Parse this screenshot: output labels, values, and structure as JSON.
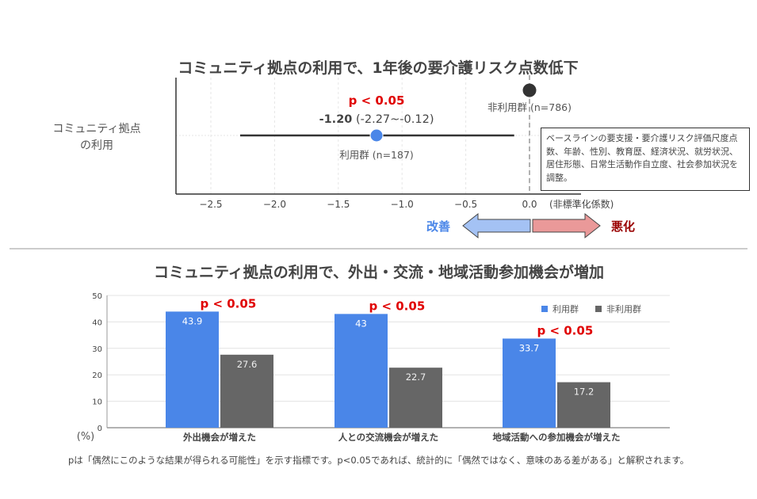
{
  "chart_data": [
    {
      "type": "scatter",
      "subtype": "forest-plot",
      "title": "コミュニティ拠点の利用で、1年後の要介護リスク点数低下",
      "ylabel_lines": [
        "コミュニティ拠点",
        "の利用"
      ],
      "xlabel": "(非標準化係数)",
      "xlim": [
        -2.8,
        0.35
      ],
      "xticks": [
        -2.5,
        -2.0,
        -1.5,
        -1.0,
        -0.5,
        0.0
      ],
      "xtick_labels": [
        "−2.5",
        "−2.0",
        "−1.5",
        "−1.0",
        "−0.5",
        "0.0"
      ],
      "grid": true,
      "reference_line": 0.0,
      "points": [
        {
          "name": "利用群 (n=187)",
          "estimate": -1.2,
          "ci_low": -2.27,
          "ci_high": -0.12,
          "color": "#4a86e8",
          "label": "-1.20 (-2.27~-0.12)",
          "label_bold": "-1.20",
          "label_rest": " (-2.27~-0.12)",
          "p_label": "p < 0.05"
        },
        {
          "name": "非利用群 (n=786)",
          "estimate": 0.0,
          "color": "#333333",
          "reference": true
        }
      ],
      "annotation": "ベースラインの要支援・要介護リスク評価尺度点数、年齢、性別、教育歴、経済状況、就労状況、居住形態、日常生活動作自立度、社会参加状況を調整。",
      "direction_labels": {
        "improve": "改善",
        "improve_color": "#4a86e8",
        "worsen": "悪化",
        "worsen_color": "#990000"
      }
    },
    {
      "type": "bar",
      "title": "コミュニティ拠点の利用で、外出・交流・地域活動参加機会が増加",
      "categories": [
        "外出機会が増えた",
        "人との交流機会が増えた",
        "地域活動への参加機会が増えた"
      ],
      "series": [
        {
          "name": "利用群",
          "values": [
            43.9,
            43.0,
            33.7
          ],
          "color": "#4a86e8"
        },
        {
          "name": "非利用群",
          "values": [
            27.6,
            22.7,
            17.2
          ],
          "color": "#666666"
        }
      ],
      "p_labels": [
        "p < 0.05",
        "p < 0.05",
        "p < 0.05"
      ],
      "ylabel": "(%)",
      "ylim": [
        0,
        50
      ],
      "yticks": [
        0,
        10,
        20,
        30,
        40,
        50
      ],
      "grid": true,
      "legend": "top-right"
    }
  ],
  "footnote": "pは「偶然にこのような結果が得られる可能性」を示す指標です。p<0.05であれば、統計的に「偶然ではなく、意味のある差がある」と解釈されます。"
}
